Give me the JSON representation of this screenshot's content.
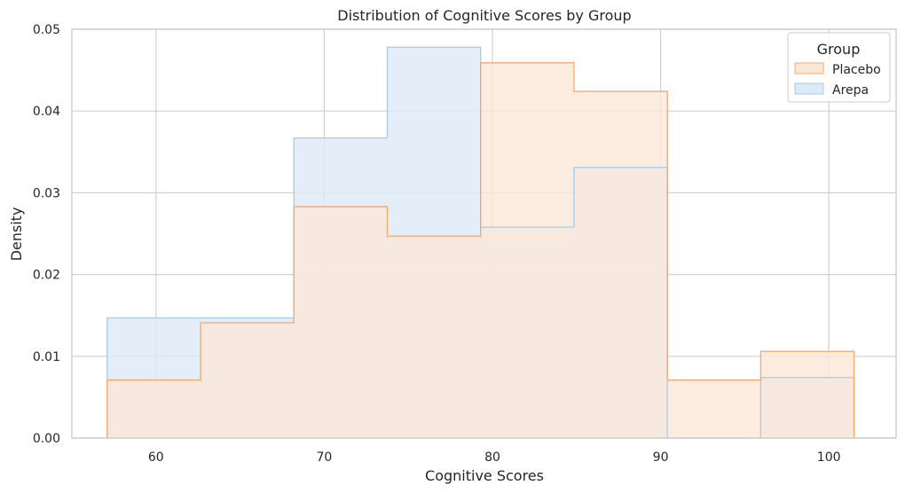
{
  "chart_data": {
    "type": "histogram-step",
    "title": "Distribution of Cognitive Scores by Group",
    "xlabel": "Cognitive Scores",
    "ylabel": "Density",
    "xlim": [
      55,
      104
    ],
    "ylim": [
      0,
      0.05
    ],
    "xticks": [
      60,
      70,
      80,
      90,
      100
    ],
    "yticks": [
      0.0,
      0.01,
      0.02,
      0.03,
      0.04,
      0.05
    ],
    "ytick_labels": [
      "0.00",
      "0.01",
      "0.02",
      "0.03",
      "0.04",
      "0.05"
    ],
    "grid": true,
    "legend": {
      "title": "Group",
      "placement": "top-right"
    },
    "bin_edges": [
      57.1,
      62.65,
      68.2,
      73.75,
      79.3,
      84.85,
      90.4,
      95.95,
      101.5
    ],
    "series": [
      {
        "name": "Placebo",
        "color": "#f5a86e",
        "fill": "#fde8d7",
        "values": [
          0.0071,
          0.0141,
          0.0283,
          0.0247,
          0.0459,
          0.0424,
          0.0071,
          0.0106
        ]
      },
      {
        "name": "Arepa",
        "color": "#a7cbe8",
        "fill": "#dce9f7",
        "values": [
          0.0147,
          0.0147,
          0.0367,
          0.0478,
          0.0258,
          0.0331,
          0.0,
          0.0074
        ]
      }
    ]
  }
}
